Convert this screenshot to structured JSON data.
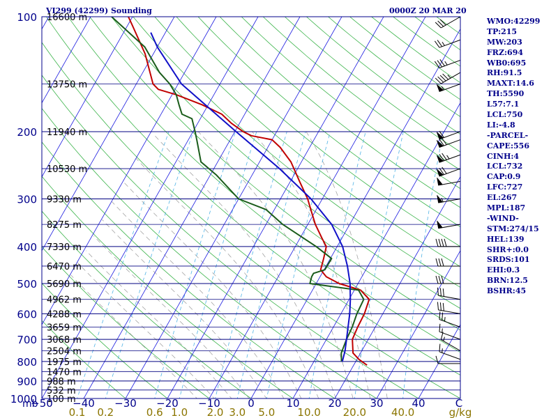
{
  "header": {
    "station": "VI299 (42299) Sounding",
    "datetime": "0000Z 20 MAR 20"
  },
  "indices": [
    "WMO:42299",
    "TP:215",
    "MW:203",
    "FRZ:694",
    "WB0:695",
    "RH:91.5",
    "MAXT:14.6",
    "TH:5590",
    "L57:7.1",
    "LCL:750",
    "LI:-4.8",
    "-PARCEL-",
    "CAPE:556",
    "CINH:4",
    "LCL:732",
    "CAP:0.9",
    "LFC:727",
    "EL:267",
    "MPL:187",
    "-WIND-",
    "STM:274/15",
    "HEL:139",
    "SHR+:0.0",
    "SRDS:101",
    "EHI:0.3",
    "BRN:12.5",
    "BSHR:45"
  ],
  "colors": {
    "frame": "#00008b",
    "isobar": "#000080",
    "isotherm": "#1a1ae0",
    "dry_adiabat": "#3cb44b",
    "moist_adiabat": "#999999",
    "mixing_ratio": "#4fb3e6",
    "temperature": "#c00000",
    "dewpoint": "#1a5c1a",
    "parcel": "#1010c8",
    "mixing_label": "#8b7500"
  },
  "chart_data": {
    "type": "skew-t",
    "title": "VI299 (42299) Sounding",
    "subtitle": "0000Z 20 MAR 20",
    "pressure_unit": "mb",
    "temperature_unit": "C",
    "mixing_ratio_unit": "g/kg",
    "y_log_scale": true,
    "pressure_range": [
      1000,
      100
    ],
    "temperature_range": [
      -50,
      50
    ],
    "pressure_ticks": [
      100,
      200,
      300,
      400,
      500,
      600,
      700,
      800,
      900,
      1000
    ],
    "temperature_ticks": [
      -50,
      -40,
      -30,
      -20,
      -10,
      0,
      10,
      20,
      30,
      40
    ],
    "mixing_ratio_ticks": [
      "0.1",
      "0.2",
      "0.6",
      "1.0",
      "2.0",
      "3.0",
      "5.0",
      "10.0",
      "20.0",
      "40.0"
    ],
    "mixing_ratio_values": [
      0.1,
      0.2,
      0.6,
      1.0,
      2.0,
      3.0,
      5.0,
      10.0,
      20.0,
      40.0
    ],
    "height_levels": [
      {
        "p": 100,
        "label": "16600 m"
      },
      {
        "p": 150,
        "label": "13750 m"
      },
      {
        "p": 200,
        "label": "11940 m"
      },
      {
        "p": 250,
        "label": "10530 m"
      },
      {
        "p": 300,
        "label": "9330 m"
      },
      {
        "p": 350,
        "label": "8275 m"
      },
      {
        "p": 400,
        "label": "7330 m"
      },
      {
        "p": 450,
        "label": "6470 m"
      },
      {
        "p": 500,
        "label": "5690 m"
      },
      {
        "p": 550,
        "label": "4962 m"
      },
      {
        "p": 600,
        "label": "4288 m"
      },
      {
        "p": 650,
        "label": "3659 m"
      },
      {
        "p": 700,
        "label": "3068 m"
      },
      {
        "p": 750,
        "label": "2504 m"
      },
      {
        "p": 800,
        "label": "1975 m"
      },
      {
        "p": 850,
        "label": "1470 m"
      },
      {
        "p": 900,
        "label": "988 m"
      },
      {
        "p": 950,
        "label": "532 m"
      },
      {
        "p": 1000,
        "label": "100 m"
      }
    ],
    "series": [
      {
        "key": "temperature",
        "points": [
          [
            818,
            23.2
          ],
          [
            790,
            20.5
          ],
          [
            760,
            18.2
          ],
          [
            700,
            16.2
          ],
          [
            650,
            15.8
          ],
          [
            600,
            15.6
          ],
          [
            550,
            14.8
          ],
          [
            520,
            11.5
          ],
          [
            500,
            5.5
          ],
          [
            480,
            1.5
          ],
          [
            460,
            -0.8
          ],
          [
            430,
            -1.6
          ],
          [
            400,
            -2.6
          ],
          [
            380,
            -4.8
          ],
          [
            350,
            -8.2
          ],
          [
            320,
            -11.3
          ],
          [
            300,
            -13.5
          ],
          [
            270,
            -17.8
          ],
          [
            240,
            -22.5
          ],
          [
            220,
            -27
          ],
          [
            210,
            -30
          ],
          [
            205,
            -35.5
          ],
          [
            200,
            -38
          ],
          [
            190,
            -42
          ],
          [
            180,
            -45.5
          ],
          [
            170,
            -51.5
          ],
          [
            160,
            -59
          ],
          [
            155,
            -64
          ],
          [
            150,
            -66
          ],
          [
            125,
            -72
          ],
          [
            105,
            -79
          ],
          [
            100,
            -81
          ]
        ]
      },
      {
        "key": "dewpoint",
        "points": [
          [
            800,
            16.6
          ],
          [
            760,
            15.4
          ],
          [
            700,
            14.8
          ],
          [
            650,
            14.5
          ],
          [
            600,
            13.8
          ],
          [
            550,
            13.5
          ],
          [
            520,
            11
          ],
          [
            500,
            -1.5
          ],
          [
            480,
            -2
          ],
          [
            470,
            -2
          ],
          [
            460,
            0.2
          ],
          [
            430,
            0.3
          ],
          [
            400,
            -5
          ],
          [
            350,
            -16
          ],
          [
            320,
            -22
          ],
          [
            300,
            -30
          ],
          [
            260,
            -38.5
          ],
          [
            240,
            -44
          ],
          [
            210,
            -48
          ],
          [
            200,
            -49.5
          ],
          [
            185,
            -52
          ],
          [
            180,
            -55
          ],
          [
            170,
            -57
          ],
          [
            160,
            -59
          ],
          [
            150,
            -62
          ],
          [
            140,
            -66
          ],
          [
            120,
            -73
          ],
          [
            100,
            -85
          ]
        ]
      },
      {
        "key": "parcel",
        "points": [
          [
            800,
            16.8
          ],
          [
            750,
            16
          ],
          [
            700,
            14.8
          ],
          [
            650,
            13.5
          ],
          [
            600,
            12.1
          ],
          [
            550,
            10.3
          ],
          [
            500,
            8.1
          ],
          [
            450,
            5.1
          ],
          [
            400,
            1.3
          ],
          [
            350,
            -4.3
          ],
          [
            300,
            -12.7
          ],
          [
            250,
            -24.3
          ],
          [
            200,
            -39.7
          ],
          [
            150,
            -59.2
          ],
          [
            120,
            -70
          ],
          [
            110,
            -73.5
          ]
        ]
      }
    ],
    "wind_barbs": [
      {
        "p": 810,
        "direction": 270,
        "speed": 10
      },
      {
        "p": 790,
        "direction": 290,
        "speed": 15
      },
      {
        "p": 750,
        "direction": 300,
        "speed": 15
      },
      {
        "p": 700,
        "direction": 290,
        "speed": 15
      },
      {
        "p": 650,
        "direction": 290,
        "speed": 25
      },
      {
        "p": 600,
        "direction": 280,
        "speed": 30
      },
      {
        "p": 550,
        "direction": 280,
        "speed": 30
      },
      {
        "p": 500,
        "direction": 270,
        "speed": 30
      },
      {
        "p": 450,
        "direction": 270,
        "speed": 30
      },
      {
        "p": 400,
        "direction": 270,
        "speed": 40
      },
      {
        "p": 350,
        "direction": 260,
        "speed": 50
      },
      {
        "p": 300,
        "direction": 260,
        "speed": 55
      },
      {
        "p": 270,
        "direction": 260,
        "speed": 50
      },
      {
        "p": 250,
        "direction": 250,
        "speed": 70
      },
      {
        "p": 230,
        "direction": 250,
        "speed": 75
      },
      {
        "p": 210,
        "direction": 250,
        "speed": 70
      },
      {
        "p": 200,
        "direction": 250,
        "speed": 60
      },
      {
        "p": 150,
        "direction": 250,
        "speed": 55
      },
      {
        "p": 140,
        "direction": 240,
        "speed": 45
      },
      {
        "p": 130,
        "direction": 250,
        "speed": 35
      },
      {
        "p": 115,
        "direction": 250,
        "speed": 25
      },
      {
        "p": 100,
        "direction": 240,
        "speed": 30
      }
    ]
  }
}
